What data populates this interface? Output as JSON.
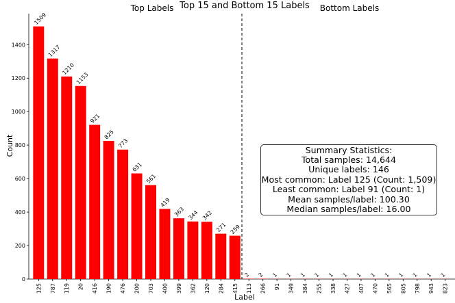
{
  "chart_data": {
    "type": "bar",
    "title": "Top 15 and Bottom 15 Labels",
    "section_labels": {
      "top": "Top Labels",
      "bottom": "Bottom Labels"
    },
    "xlabel": "Label",
    "ylabel": "Count",
    "ylim": [
      0,
      1585
    ],
    "yticks": [
      0,
      200,
      400,
      600,
      800,
      1000,
      1200,
      1400
    ],
    "categories": [
      "125",
      "787",
      "119",
      "20",
      "416",
      "190",
      "476",
      "200",
      "703",
      "400",
      "399",
      "362",
      "120",
      "284",
      "415",
      "113",
      "266",
      "91",
      "349",
      "384",
      "255",
      "338",
      "427",
      "407",
      "470",
      "565",
      "805",
      "798",
      "943",
      "823"
    ],
    "values": [
      1509,
      1317,
      1210,
      1153,
      921,
      825,
      773,
      631,
      561,
      419,
      363,
      344,
      342,
      271,
      259,
      2,
      2,
      1,
      1,
      1,
      1,
      1,
      1,
      1,
      1,
      1,
      1,
      1,
      1,
      1
    ],
    "bar_color": "#ff0000",
    "divider_after_index": 14,
    "grid": false,
    "summary": {
      "heading": "Summary Statistics:",
      "lines": [
        "Total samples: 14,644",
        "Unique labels: 146",
        "Most common: Label 125 (Count: 1,509)",
        "Least common: Label 91 (Count: 1)",
        "Mean samples/label: 100.30",
        "Median samples/label: 16.00"
      ]
    }
  }
}
